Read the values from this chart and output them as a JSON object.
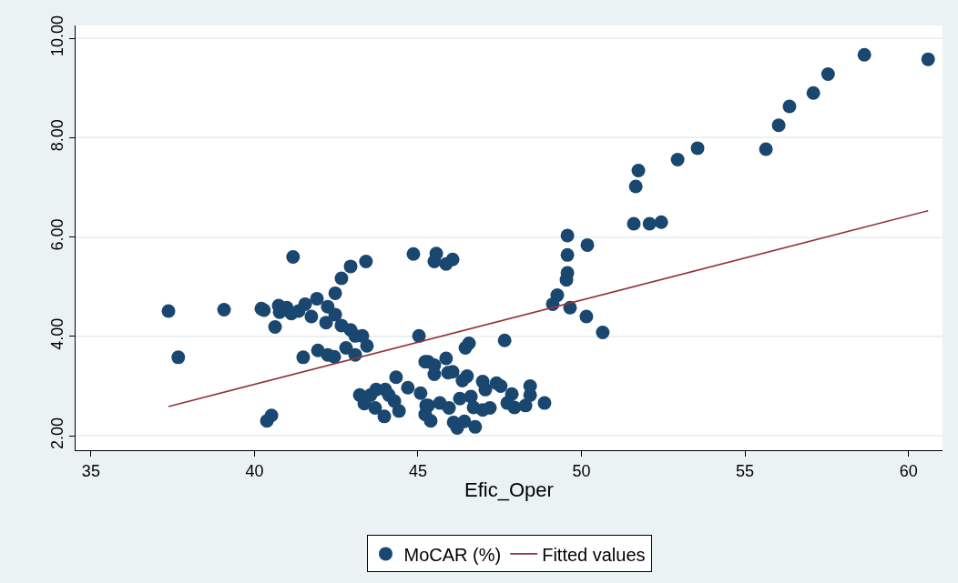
{
  "chart_data": {
    "type": "scatter",
    "xlabel": "Efic_Oper",
    "xlim": [
      34.53,
      61.04
    ],
    "xticks": [
      35,
      40,
      45,
      50,
      55,
      60
    ],
    "ylim": [
      1.71,
      10.26
    ],
    "yticks": [
      {
        "value": 2,
        "label": "2.00"
      },
      {
        "value": 4,
        "label": "4.00"
      },
      {
        "value": 6,
        "label": "6.00"
      },
      {
        "value": 8,
        "label": "8.00"
      },
      {
        "value": 10,
        "label": "10.00"
      }
    ],
    "grid": "y",
    "legend": "bottom",
    "series": [
      {
        "name": "MoCAR (%)",
        "color": "#1a476f",
        "marker": "circle",
        "x": [
          37.37,
          37.67,
          39.07,
          40.38,
          40.52,
          41.18,
          40.21,
          40.29,
          40.74,
          40.77,
          40.99,
          41.13,
          41.35,
          41.55,
          41.74,
          41.91,
          40.63,
          42.24,
          42.19,
          42.47,
          42.47,
          42.66,
          42.94,
          43.41,
          42.66,
          42.94,
          43.08,
          43.3,
          43.44,
          41.49,
          41.94,
          42.24,
          42.44,
          42.8,
          43.08,
          44.86,
          45.03,
          45.22,
          43.22,
          43.55,
          43.72,
          44.0,
          44.11,
          44.33,
          44.69,
          45.08,
          43.36,
          43.69,
          43.97,
          44.42,
          44.28,
          45.25,
          45.22,
          45.56,
          45.5,
          45.86,
          46.06,
          46.56,
          46.45,
          47.65,
          49.26,
          49.12,
          49.65,
          50.15,
          50.65,
          49.54,
          49.57,
          49.57,
          49.57,
          50.18,
          45.31,
          45.5,
          45.86,
          45.5,
          45.92,
          46.06,
          46.36,
          46.5,
          46.98,
          47.06,
          47.4,
          47.53,
          47.87,
          48.43,
          48.43,
          47.73,
          47.95,
          48.29,
          48.87,
          45.31,
          45.67,
          45.95,
          46.28,
          46.62,
          46.7,
          46.98,
          47.2,
          45.39,
          46.2,
          46.42,
          46.75,
          46.09,
          51.6,
          52.08,
          52.44,
          51.66,
          51.74,
          52.94,
          53.55,
          55.64,
          56.03,
          56.36,
          57.09,
          57.54,
          58.65,
          60.6
        ],
        "values": [
          4.51,
          3.58,
          4.54,
          2.3,
          2.41,
          5.6,
          4.56,
          4.53,
          4.62,
          4.49,
          4.58,
          4.46,
          4.51,
          4.65,
          4.4,
          4.76,
          4.19,
          4.6,
          4.28,
          4.87,
          4.44,
          5.17,
          5.41,
          5.51,
          4.22,
          4.13,
          4.01,
          4.01,
          3.81,
          3.58,
          3.72,
          3.63,
          3.59,
          3.77,
          3.63,
          5.66,
          4.01,
          3.49,
          2.82,
          2.82,
          2.93,
          2.93,
          2.82,
          3.18,
          2.97,
          2.86,
          2.65,
          2.56,
          2.39,
          2.5,
          2.7,
          2.61,
          2.43,
          5.67,
          5.51,
          5.46,
          5.55,
          3.86,
          3.77,
          3.92,
          4.83,
          4.65,
          4.58,
          4.4,
          4.08,
          5.14,
          5.28,
          5.64,
          6.03,
          5.84,
          3.49,
          3.42,
          3.56,
          3.24,
          3.27,
          3.29,
          3.11,
          3.2,
          3.09,
          2.93,
          3.06,
          3.0,
          2.84,
          3.0,
          2.82,
          2.66,
          2.57,
          2.61,
          2.66,
          2.61,
          2.66,
          2.56,
          2.75,
          2.79,
          2.57,
          2.52,
          2.56,
          2.3,
          2.16,
          2.29,
          2.18,
          2.27,
          6.27,
          6.27,
          6.3,
          7.02,
          7.34,
          7.56,
          7.79,
          7.77,
          8.25,
          8.63,
          8.9,
          9.28,
          9.67,
          9.58
        ]
      },
      {
        "name": "Fitted values",
        "color": "#90353b",
        "type": "line",
        "x": [
          37.37,
          60.6
        ],
        "values": [
          2.59,
          6.53
        ]
      }
    ]
  }
}
